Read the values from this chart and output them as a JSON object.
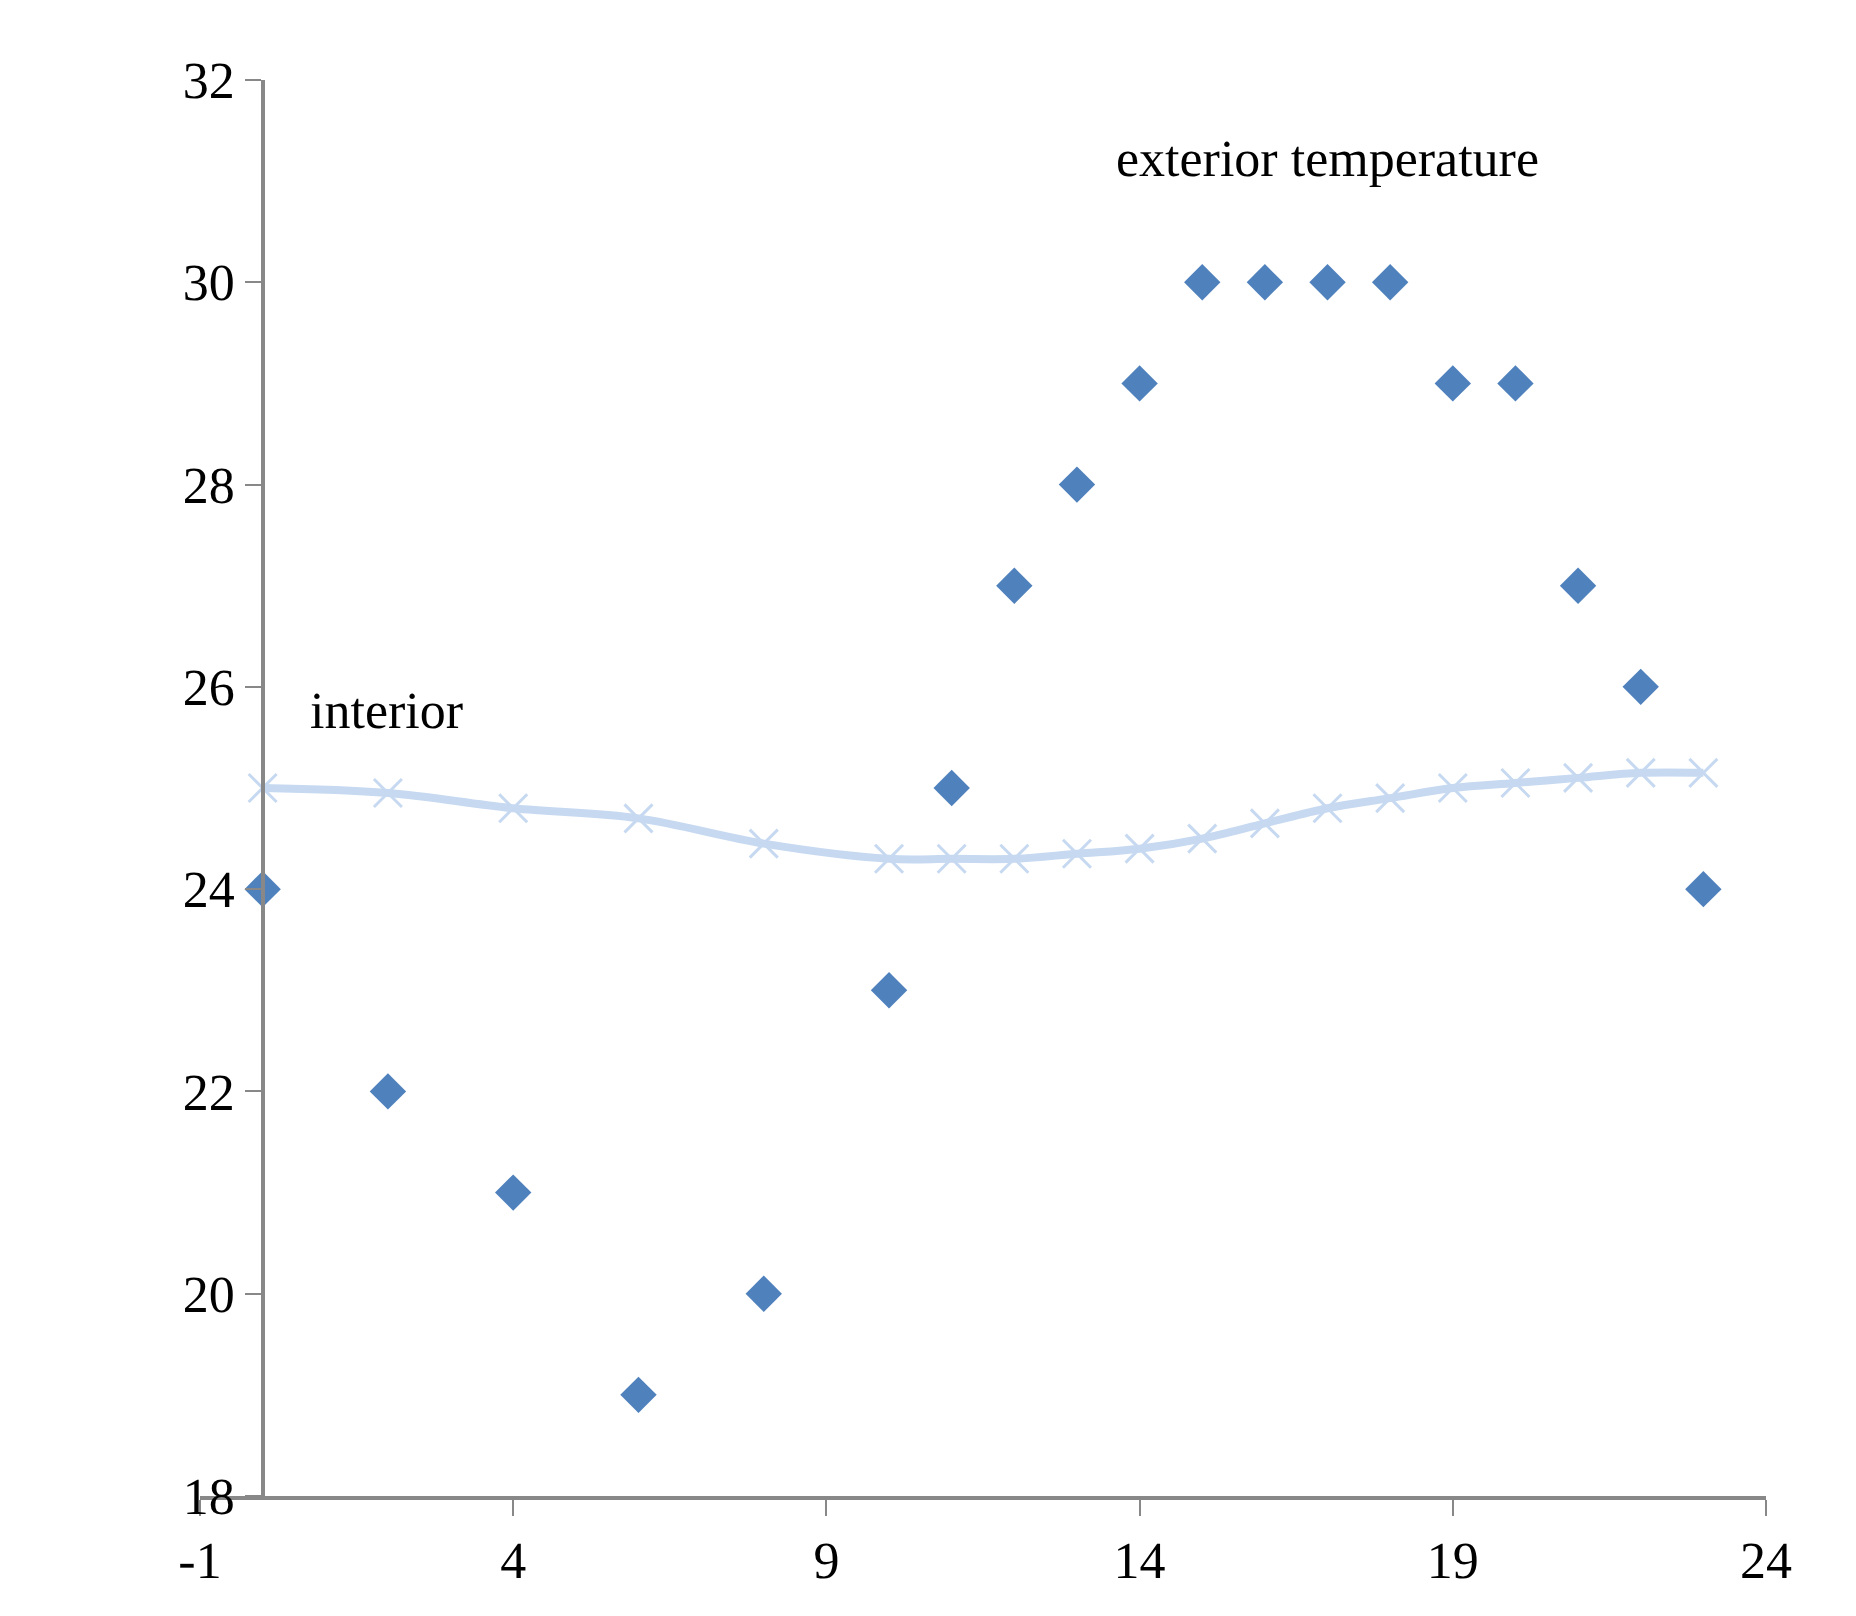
{
  "chart_data": {
    "type": "scatter",
    "xlim": [
      -1,
      24
    ],
    "xticks": [
      -1,
      4,
      9,
      14,
      19,
      24
    ],
    "ylim": [
      18,
      32
    ],
    "yticks": [
      18,
      20,
      22,
      24,
      26,
      28,
      30,
      32
    ],
    "grid": false,
    "legend": false,
    "series": [
      {
        "name": "exterior temperature",
        "marker": "diamond",
        "color": "#4f81bd",
        "x": [
          0,
          2,
          4,
          6,
          8,
          10,
          11,
          12,
          13,
          14,
          15,
          16,
          17,
          18,
          19,
          20,
          21,
          22,
          23
        ],
        "values": [
          24,
          22,
          21,
          19,
          20,
          23,
          25,
          27,
          28,
          29,
          30,
          30,
          30,
          30,
          29,
          29,
          27,
          26,
          24
        ]
      },
      {
        "name": "interior",
        "type": "line",
        "marker": "cross",
        "color": "#c6d9f1",
        "x": [
          0,
          2,
          4,
          6,
          8,
          10,
          11,
          12,
          13,
          14,
          15,
          16,
          17,
          18,
          19,
          20,
          21,
          22,
          23
        ],
        "values": [
          25.0,
          24.95,
          24.8,
          24.7,
          24.45,
          24.3,
          24.3,
          24.3,
          24.35,
          24.4,
          24.5,
          24.65,
          24.8,
          24.9,
          25.0,
          25.05,
          25.1,
          25.15,
          25.15
        ]
      }
    ]
  }
}
